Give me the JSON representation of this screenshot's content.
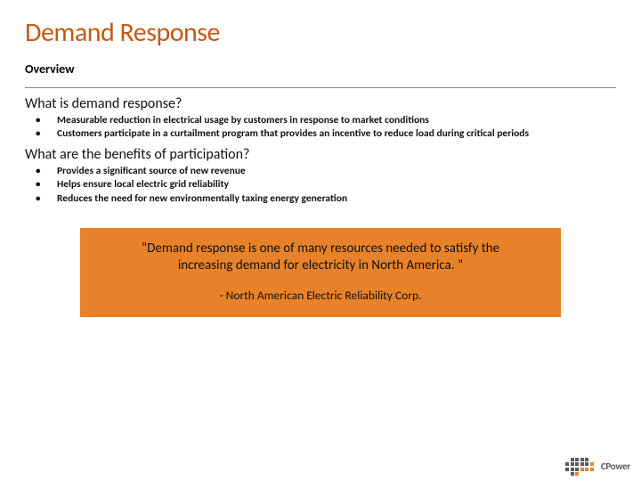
{
  "colors": {
    "title_color": "#c65a11",
    "quote_bg": "#e8822a",
    "rule": "#808080",
    "logo_dark": "#595959",
    "logo_orange": "#e8822a"
  },
  "title": "Demand Response",
  "subtitle": "Overview",
  "sections": [
    {
      "heading": "What is demand response?",
      "bullets": [
        "Measurable reduction in electrical usage by customers in response to market conditions",
        "Customers participate in a curtailment program that provides an incentive to reduce load during critical periods"
      ]
    },
    {
      "heading": "What are the benefits of participation?",
      "bullets": [
        "Provides a significant source of new revenue",
        "Helps ensure local electric grid reliability",
        "Reduces the need for new environmentally taxing energy generation"
      ]
    }
  ],
  "quote": {
    "text": "“Demand response is one of many resources needed to satisfy the increasing demand for electricity in North America. ”",
    "attribution": "- North American Electric Reliability Corp."
  },
  "logo": {
    "text": "CPower",
    "grid": [
      [
        0,
        1,
        1,
        1,
        1,
        0
      ],
      [
        1,
        1,
        1,
        1,
        1,
        1
      ],
      [
        1,
        1,
        1,
        1,
        1,
        1
      ],
      [
        0,
        1,
        1,
        0,
        0,
        0
      ]
    ],
    "color_map": [
      [
        0,
        1,
        1,
        1,
        1,
        0
      ],
      [
        1,
        1,
        1,
        1,
        1,
        2
      ],
      [
        1,
        1,
        1,
        2,
        2,
        2
      ],
      [
        0,
        1,
        2,
        0,
        0,
        0
      ]
    ]
  }
}
